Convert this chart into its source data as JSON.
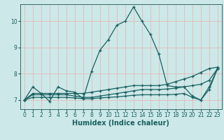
{
  "xlabel": "Humidex (Indice chaleur)",
  "background_color": "#cce8e8",
  "grid_color": "#e8b0b0",
  "line_color": "#1a6060",
  "spine_color": "#336666",
  "xlim": [
    -0.5,
    23.5
  ],
  "ylim": [
    6.65,
    10.65
  ],
  "yticks": [
    7,
    8,
    9,
    10
  ],
  "xticks": [
    0,
    1,
    2,
    3,
    4,
    5,
    6,
    7,
    8,
    9,
    10,
    11,
    12,
    13,
    14,
    15,
    16,
    17,
    18,
    19,
    20,
    21,
    22,
    23
  ],
  "lines": [
    {
      "x": [
        0,
        1,
        2,
        3,
        4,
        5,
        6,
        7,
        8,
        9,
        10,
        11,
        12,
        13,
        14,
        15,
        16,
        17,
        18,
        19,
        20,
        21,
        22,
        23
      ],
      "y": [
        7.0,
        7.5,
        7.25,
        6.95,
        7.5,
        7.35,
        7.3,
        7.05,
        8.1,
        8.9,
        9.3,
        9.85,
        10.0,
        10.55,
        10.0,
        9.5,
        8.75,
        7.55,
        7.5,
        7.5,
        7.15,
        7.0,
        7.5,
        8.2
      ]
    },
    {
      "x": [
        0,
        1,
        2,
        3,
        4,
        5,
        6,
        7,
        8,
        9,
        10,
        11,
        12,
        13,
        14,
        15,
        16,
        17,
        18,
        19,
        20,
        21,
        22,
        23
      ],
      "y": [
        7.0,
        7.25,
        7.25,
        7.25,
        7.25,
        7.25,
        7.25,
        7.25,
        7.3,
        7.35,
        7.4,
        7.45,
        7.5,
        7.55,
        7.55,
        7.55,
        7.55,
        7.6,
        7.7,
        7.8,
        7.9,
        8.05,
        8.2,
        8.25
      ]
    },
    {
      "x": [
        0,
        1,
        2,
        3,
        4,
        5,
        6,
        7,
        8,
        9,
        10,
        11,
        12,
        13,
        14,
        15,
        16,
        17,
        18,
        19,
        20,
        21,
        22,
        23
      ],
      "y": [
        7.0,
        7.2,
        7.2,
        7.2,
        7.2,
        7.2,
        7.15,
        7.1,
        7.1,
        7.15,
        7.2,
        7.25,
        7.3,
        7.35,
        7.4,
        7.4,
        7.4,
        7.42,
        7.45,
        7.5,
        7.55,
        7.6,
        7.75,
        8.2
      ]
    },
    {
      "x": [
        0,
        1,
        2,
        3,
        4,
        5,
        6,
        7,
        8,
        9,
        10,
        11,
        12,
        13,
        14,
        15,
        16,
        17,
        18,
        19,
        20,
        21,
        22,
        23
      ],
      "y": [
        7.0,
        7.1,
        7.1,
        7.1,
        7.1,
        7.1,
        7.08,
        7.05,
        7.05,
        7.08,
        7.1,
        7.12,
        7.15,
        7.18,
        7.2,
        7.2,
        7.2,
        7.2,
        7.22,
        7.25,
        7.1,
        7.0,
        7.4,
        8.2
      ]
    }
  ],
  "marker": "+",
  "markersize": 3.5,
  "linewidth": 0.9,
  "tick_fontsize": 5.5,
  "label_fontsize": 7.0,
  "label_fontweight": "bold"
}
